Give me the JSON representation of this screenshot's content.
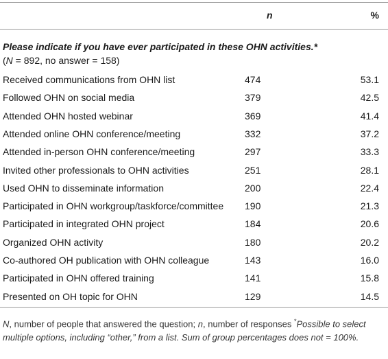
{
  "header": {
    "n": "n",
    "pct": "%"
  },
  "section": {
    "title": "Please indicate if you have ever participated in these OHN activities.*",
    "subtitle": [
      "(",
      "N",
      " = 892, no answer = 158)"
    ]
  },
  "table": {
    "rows": [
      [
        "Received communications from OHN list",
        "474",
        "53.1"
      ],
      [
        "Followed OHN on social media",
        "379",
        "42.5"
      ],
      [
        "Attended OHN hosted webinar",
        "369",
        "41.4"
      ],
      [
        "Attended online OHN conference/meeting",
        "332",
        "37.2"
      ],
      [
        "Attended in-person OHN conference/meeting",
        "297",
        "33.3"
      ],
      [
        "Invited other professionals to OHN activities",
        "251",
        "28.1"
      ],
      [
        "Used OHN to disseminate information",
        "200",
        "22.4"
      ],
      [
        "Participated in OHN workgroup/taskforce/committee",
        "190",
        "21.3"
      ],
      [
        "Participated in integrated OHN project",
        "184",
        "20.6"
      ],
      [
        "Organized OHN activity",
        "180",
        "20.2"
      ],
      [
        "Co-authored OH publication with OHN colleague",
        "143",
        "16.0"
      ],
      [
        "Participated in OHN offered training",
        "141",
        "15.8"
      ],
      [
        "Presented on OH topic for OHN",
        "129",
        "14.5"
      ]
    ]
  },
  "footnote": [
    "N",
    ", number of people that answered the question; ",
    "n",
    ", number of responses ",
    "*",
    "Possible to select multiple options, including “other,” from a list. Sum of group percentages does not = 100%."
  ]
}
